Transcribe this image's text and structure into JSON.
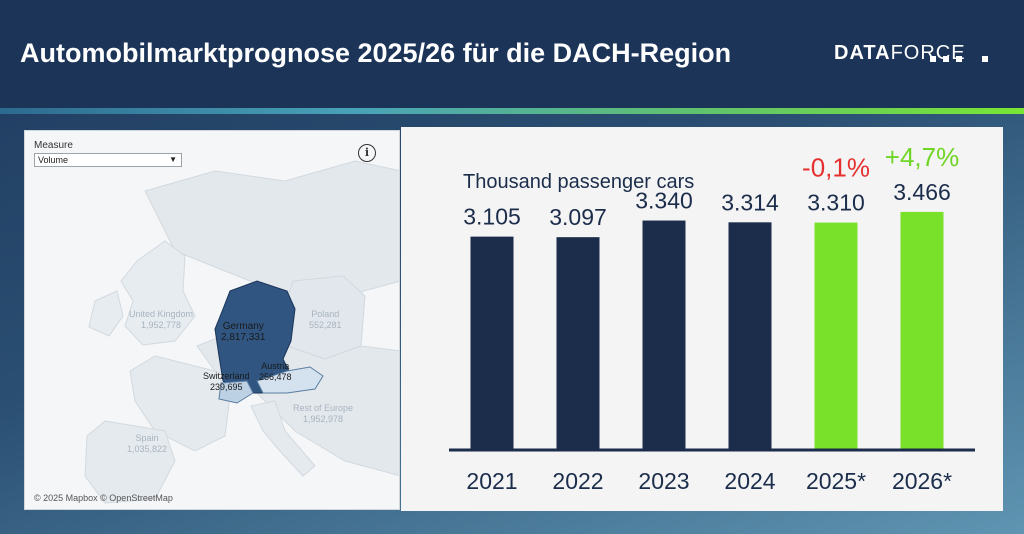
{
  "header": {
    "title": "Automobilmarktprognose 2025/26 für die DACH-Region",
    "logo_bold": "DATA",
    "logo_light": "FORCE"
  },
  "map": {
    "measure_label": "Measure",
    "measure_value": "Volume",
    "info_icon": "info-icon",
    "attribution": "© 2025 Mapbox © OpenStreetMap",
    "countries": [
      {
        "name": "United Kingdom",
        "value": "1,952,778"
      },
      {
        "name": "Poland",
        "value": "552,281"
      },
      {
        "name": "Germany",
        "value": "2,817,331"
      },
      {
        "name": "Austria",
        "value": "256,478"
      },
      {
        "name": "Switzerland",
        "value": "239,695"
      },
      {
        "name": "Rest of Europe",
        "value": "1,952,978"
      },
      {
        "name": "Spain",
        "value": "1,035,822"
      }
    ]
  },
  "colors": {
    "header_bg": "#1b3458",
    "bar_actual": "#1b2d4b",
    "bar_forecast": "#79e12a",
    "change_negative": "#e53030",
    "change_positive": "#6fd626",
    "germany": "#2f5580",
    "dach_light": "#bcd1e4"
  },
  "chart_data": {
    "type": "bar",
    "subtitle": "Thousand passenger cars",
    "categories": [
      "2021",
      "2022",
      "2023",
      "2024",
      "2025*",
      "2026*"
    ],
    "values": [
      3105,
      3097,
      3340,
      3314,
      3310,
      3466
    ],
    "value_labels": [
      "3.105",
      "3.097",
      "3.340",
      "3.314",
      "3.310",
      "3.466"
    ],
    "forecast": [
      false,
      false,
      false,
      false,
      true,
      true
    ],
    "change_labels": [
      "",
      "",
      "",
      "",
      "-0,1%",
      "+4,7%"
    ],
    "xlabel": "",
    "ylabel": "",
    "ylim": [
      0,
      3600
    ],
    "grid": false
  }
}
